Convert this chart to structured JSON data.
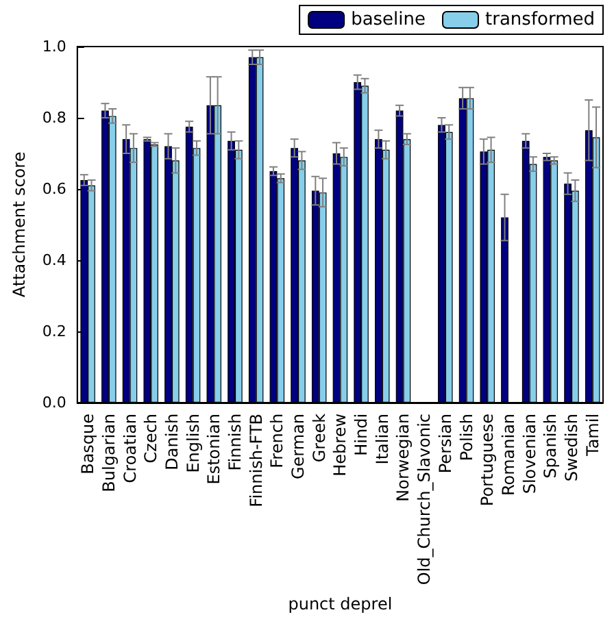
{
  "chart_data": {
    "type": "bar",
    "xlabel": "punct deprel",
    "ylabel": "Attachment score",
    "categories": [
      "Basque",
      "Bulgarian",
      "Croatian",
      "Czech",
      "Danish",
      "English",
      "Estonian",
      "Finnish",
      "Finnish-FTB",
      "French",
      "German",
      "Greek",
      "Hebrew",
      "Hindi",
      "Italian",
      "Norwegian",
      "Old_Church_Slavonic",
      "Persian",
      "Polish",
      "Portuguese",
      "Romanian",
      "Slovenian",
      "Spanish",
      "Swedish",
      "Tamil"
    ],
    "series": [
      {
        "name": "baseline",
        "color": "#000080",
        "values": [
          0.625,
          0.82,
          0.74,
          0.74,
          0.72,
          0.775,
          0.835,
          0.735,
          0.97,
          0.65,
          0.715,
          0.595,
          0.7,
          0.9,
          0.74,
          0.82,
          null,
          0.78,
          0.855,
          0.705,
          0.52,
          0.735,
          0.69,
          0.615,
          0.765
        ],
        "errors": [
          0.015,
          0.02,
          0.04,
          0.005,
          0.035,
          0.015,
          0.08,
          0.025,
          0.02,
          0.012,
          0.025,
          0.04,
          0.03,
          0.02,
          0.025,
          0.015,
          null,
          0.02,
          0.03,
          0.035,
          0.065,
          0.02,
          0.01,
          0.03,
          0.085
        ]
      },
      {
        "name": "transformed",
        "color": "#87ceeb",
        "values": [
          0.61,
          0.805,
          0.715,
          0.725,
          0.68,
          0.715,
          0.835,
          0.71,
          0.97,
          0.63,
          0.68,
          0.59,
          0.69,
          0.89,
          0.71,
          0.74,
          null,
          0.76,
          0.855,
          0.71,
          null,
          0.67,
          0.68,
          0.595,
          0.745
        ],
        "errors": [
          0.015,
          0.02,
          0.04,
          0.005,
          0.035,
          0.02,
          0.08,
          0.025,
          0.02,
          0.012,
          0.025,
          0.04,
          0.025,
          0.02,
          0.025,
          0.015,
          null,
          0.02,
          0.03,
          0.035,
          null,
          0.02,
          0.01,
          0.03,
          0.085
        ]
      }
    ],
    "ylim": [
      0,
      1
    ],
    "yticks": [
      {
        "value": 0,
        "label": "0.0"
      },
      {
        "value": 0.2,
        "label": "0.2"
      },
      {
        "value": 0.4,
        "label": "0.4"
      },
      {
        "value": 0.6,
        "label": "0.6"
      },
      {
        "value": 0.8,
        "label": "0.8"
      },
      {
        "value": 1,
        "label": "1.0"
      }
    ],
    "legend": "top right"
  }
}
